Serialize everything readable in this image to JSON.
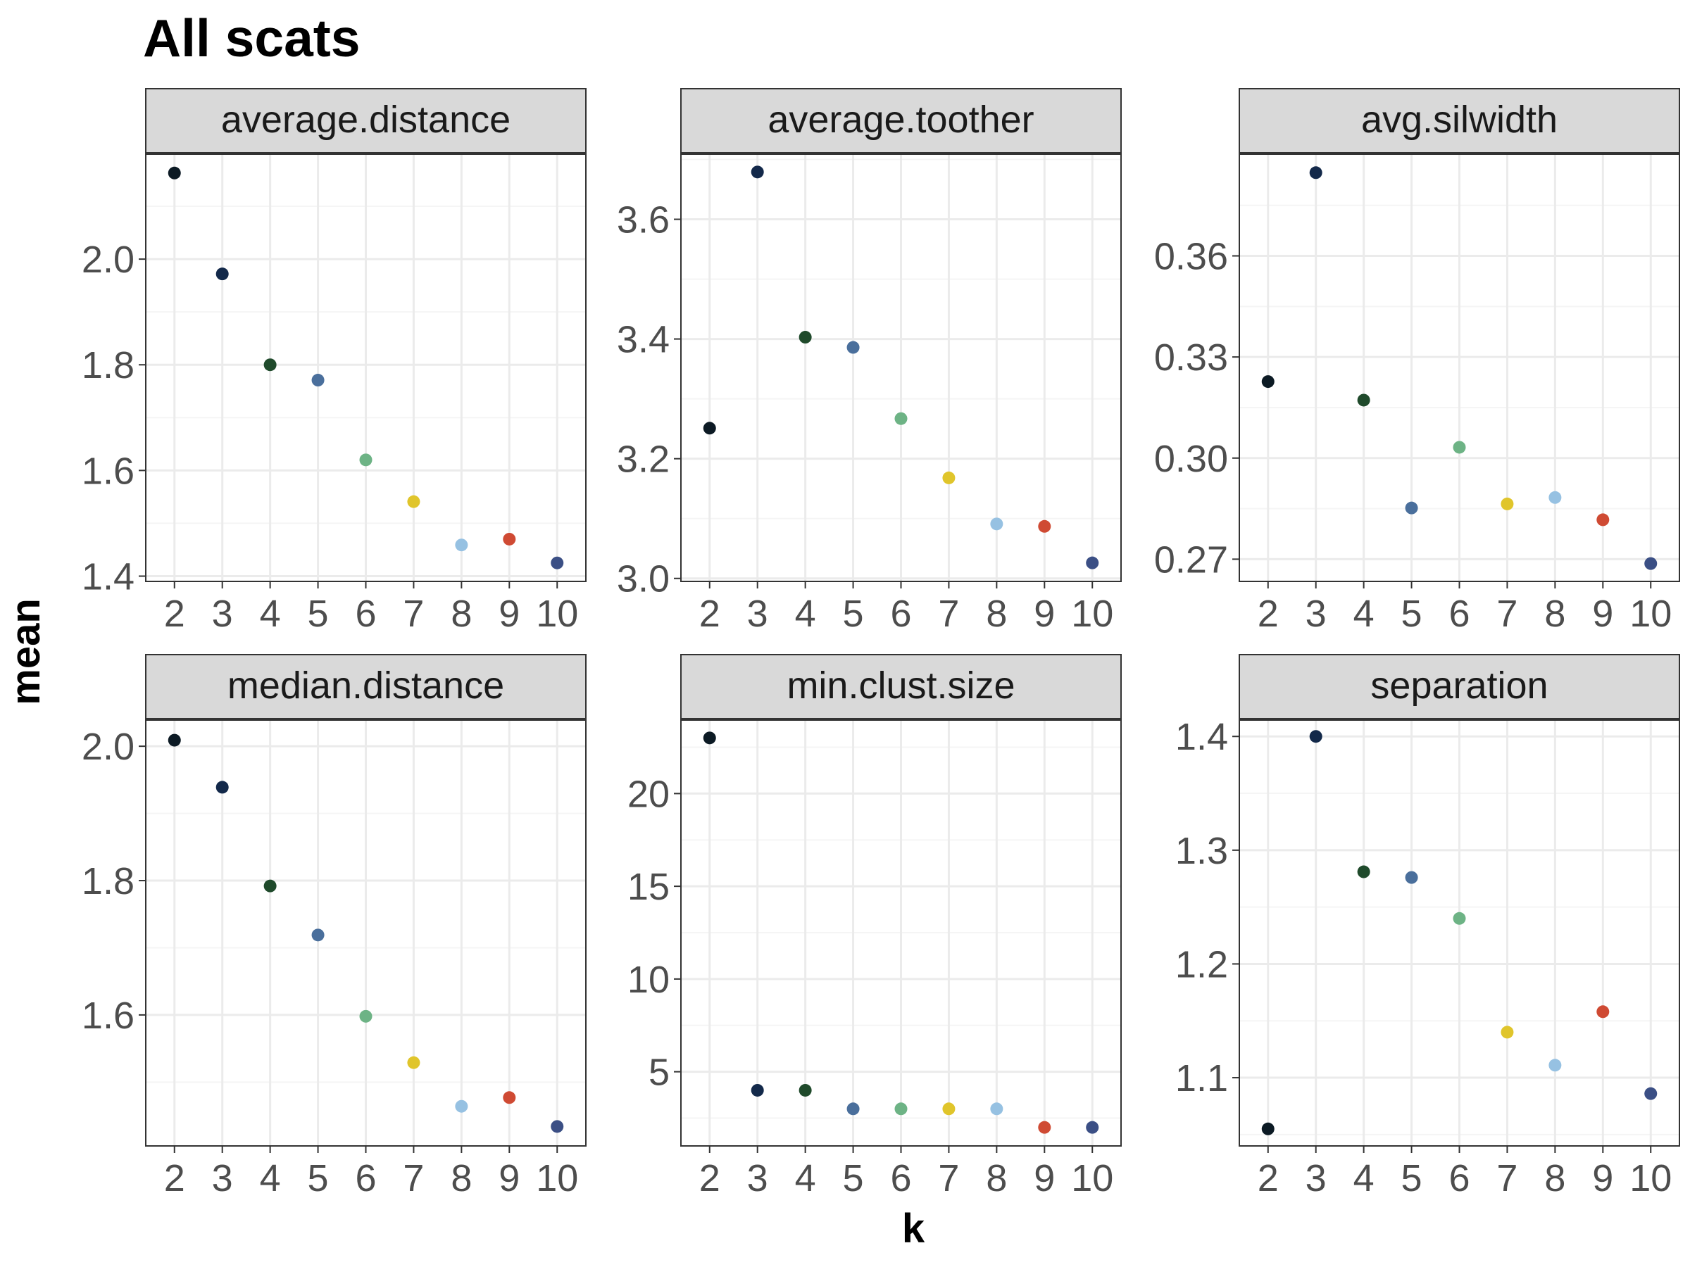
{
  "title": "All scats",
  "xlabel": "k",
  "ylabel": "mean",
  "chart_data": [
    {
      "type": "scatter",
      "facet": "average.distance",
      "x": [
        2,
        3,
        4,
        5,
        6,
        7,
        8,
        9,
        10
      ],
      "y": [
        2.163,
        1.972,
        1.8,
        1.771,
        1.62,
        1.541,
        1.459,
        1.47,
        1.425
      ],
      "xticks": [
        2,
        3,
        4,
        5,
        6,
        7,
        8,
        9,
        10
      ],
      "yticks": [
        1.4,
        1.6,
        1.8,
        2.0
      ],
      "ytick_labels": [
        "1.4",
        "1.6",
        "1.8",
        "2.0"
      ],
      "ylim": [
        1.39,
        2.2
      ],
      "grid": true
    },
    {
      "type": "scatter",
      "facet": "average.toother",
      "x": [
        2,
        3,
        4,
        5,
        6,
        7,
        8,
        9,
        10
      ],
      "y": [
        3.251,
        3.679,
        3.403,
        3.386,
        3.267,
        3.168,
        3.091,
        3.087,
        3.026
      ],
      "xticks": [
        2,
        3,
        4,
        5,
        6,
        7,
        8,
        9,
        10
      ],
      "yticks": [
        3.0,
        3.2,
        3.4,
        3.6
      ],
      "ytick_labels": [
        "3.0",
        "3.2",
        "3.4",
        "3.6"
      ],
      "ylim": [
        2.995,
        3.71
      ],
      "grid": true
    },
    {
      "type": "scatter",
      "facet": "avg.silwidth",
      "x": [
        2,
        3,
        4,
        5,
        6,
        7,
        8,
        9,
        10
      ],
      "y": [
        0.3227,
        0.3847,
        0.3172,
        0.2852,
        0.3032,
        0.2864,
        0.2883,
        0.2817,
        0.2687
      ],
      "xticks": [
        2,
        3,
        4,
        5,
        6,
        7,
        8,
        9,
        10
      ],
      "yticks": [
        0.27,
        0.3,
        0.33,
        0.36
      ],
      "ytick_labels": [
        "0.27",
        "0.30",
        "0.33",
        "0.36"
      ],
      "ylim": [
        0.2634,
        0.3904
      ],
      "grid": true
    },
    {
      "type": "scatter",
      "facet": "median.distance",
      "x": [
        2,
        3,
        4,
        5,
        6,
        7,
        8,
        9,
        10
      ],
      "y": [
        2.009,
        1.939,
        1.792,
        1.719,
        1.598,
        1.529,
        1.464,
        1.477,
        1.434
      ],
      "xticks": [
        2,
        3,
        4,
        5,
        6,
        7,
        8,
        9,
        10
      ],
      "yticks": [
        1.6,
        1.8,
        2.0
      ],
      "ytick_labels": [
        "1.6",
        "1.8",
        "2.0"
      ],
      "ylim": [
        1.405,
        2.04
      ],
      "grid": true
    },
    {
      "type": "scatter",
      "facet": "min.clust.size",
      "x": [
        2,
        3,
        4,
        5,
        6,
        7,
        8,
        9,
        10
      ],
      "y": [
        23,
        4,
        4,
        3,
        3,
        3,
        3,
        2,
        2
      ],
      "xticks": [
        2,
        3,
        4,
        5,
        6,
        7,
        8,
        9,
        10
      ],
      "yticks": [
        5,
        10,
        15,
        20
      ],
      "ytick_labels": [
        "5",
        "10",
        "15",
        "20"
      ],
      "ylim": [
        1.0,
        24.0
      ],
      "grid": true
    },
    {
      "type": "scatter",
      "facet": "separation",
      "x": [
        2,
        3,
        4,
        5,
        6,
        7,
        8,
        9,
        10
      ],
      "y": [
        1.055,
        1.4,
        1.281,
        1.276,
        1.24,
        1.14,
        1.111,
        1.158,
        1.086
      ],
      "xticks": [
        2,
        3,
        4,
        5,
        6,
        7,
        8,
        9,
        10
      ],
      "yticks": [
        1.1,
        1.2,
        1.3,
        1.4
      ],
      "ytick_labels": [
        "1.1",
        "1.2",
        "1.3",
        "1.4"
      ],
      "ylim": [
        1.04,
        1.415
      ],
      "grid": true
    }
  ],
  "colors": {
    "k_2": "#0c1a24",
    "k_3": "#13294a",
    "k_4": "#1f4a2b",
    "k_5": "#4a6f9c",
    "k_6": "#6db385",
    "k_7": "#e0c52b",
    "k_8": "#96c1e2",
    "k_9": "#cf4a33",
    "k_10": "#3b4f85",
    "strip_fill": "#d9d9d9",
    "strip_border": "#333333",
    "panel_border": "#333333",
    "grid_major": "#ebebeb",
    "grid_minor": "#f5f5f5"
  }
}
